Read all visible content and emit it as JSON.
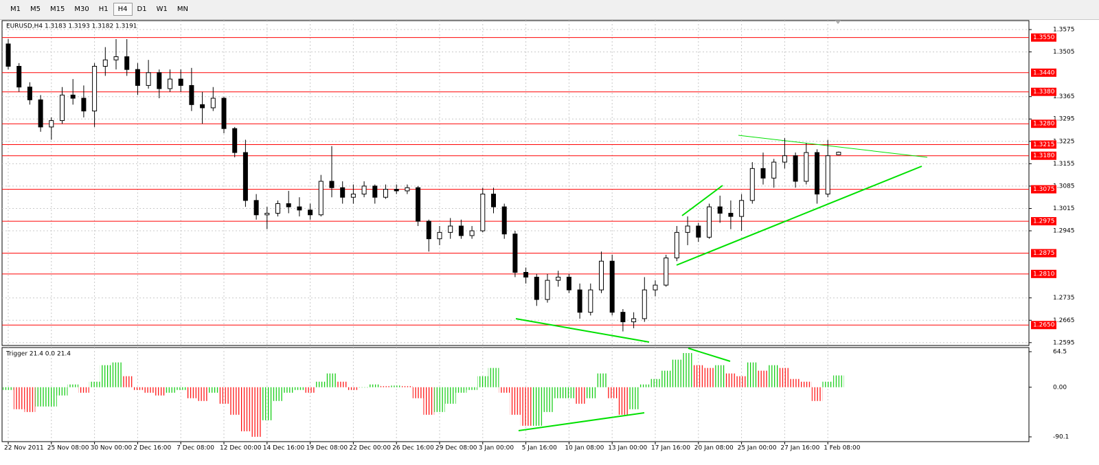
{
  "toolbar": {
    "timeframes": [
      "M1",
      "M5",
      "M15",
      "M30",
      "H1",
      "H4",
      "D1",
      "W1",
      "MN"
    ],
    "active": 5
  },
  "chart_data": [
    {
      "type": "candlestick",
      "title": "EURUSD,H4  1.3183 1.3193 1.3182 1.3191",
      "categories": [
        "22 Nov 2011",
        null,
        null,
        null,
        "25 Nov 08:00",
        null,
        null,
        null,
        "30 Nov 00:00",
        null,
        null,
        null,
        "2 Dec 16:00",
        null,
        null,
        null,
        "7 Dec 08:00",
        null,
        null,
        null,
        "12 Dec 00:00",
        null,
        null,
        null,
        "14 Dec 16:00",
        null,
        null,
        null,
        "19 Dec 08:00",
        null,
        null,
        null,
        "22 Dec 00:00",
        null,
        null,
        null,
        "26 Dec 16:00",
        null,
        null,
        null,
        "29 Dec 08:00",
        null,
        null,
        null,
        "3 Jan 00:00",
        null,
        null,
        null,
        "5 Jan 16:00",
        null,
        null,
        null,
        "10 Jan 08:00",
        null,
        null,
        null,
        "13 Jan 00:00",
        null,
        null,
        null,
        "17 Jan 16:00",
        null,
        null,
        null,
        "20 Jan 08:00",
        null,
        null,
        null,
        "25 Jan 00:00",
        null,
        null,
        null,
        "27 Jan 16:00",
        null,
        null,
        null,
        "1 Feb 08:00",
        null
      ],
      "ohlc": [
        [
          1.353,
          1.3545,
          1.345,
          1.346
        ],
        [
          1.346,
          1.347,
          1.338,
          1.3395
        ],
        [
          1.3395,
          1.341,
          1.334,
          1.3355
        ],
        [
          1.3355,
          1.337,
          1.3255,
          1.327
        ],
        [
          1.327,
          1.33,
          1.323,
          1.329
        ],
        [
          1.329,
          1.3395,
          1.328,
          1.337
        ],
        [
          1.337,
          1.342,
          1.334,
          1.336
        ],
        [
          1.336,
          1.34,
          1.33,
          1.332
        ],
        [
          1.332,
          1.347,
          1.327,
          1.346
        ],
        [
          1.346,
          1.352,
          1.343,
          1.348
        ],
        [
          1.348,
          1.3545,
          1.345,
          1.349
        ],
        [
          1.349,
          1.3545,
          1.343,
          1.345
        ],
        [
          1.345,
          1.347,
          1.337,
          1.34
        ],
        [
          1.34,
          1.348,
          1.339,
          1.344
        ],
        [
          1.344,
          1.345,
          1.336,
          1.339
        ],
        [
          1.339,
          1.345,
          1.338,
          1.342
        ],
        [
          1.342,
          1.345,
          1.338,
          1.34
        ],
        [
          1.34,
          1.3455,
          1.332,
          1.334
        ],
        [
          1.334,
          1.338,
          1.328,
          1.333
        ],
        [
          1.333,
          1.3395,
          1.332,
          1.336
        ],
        [
          1.336,
          1.3365,
          1.325,
          1.3265
        ],
        [
          1.3265,
          1.327,
          1.3175,
          1.319
        ],
        [
          1.319,
          1.323,
          1.302,
          1.304
        ],
        [
          1.304,
          1.306,
          1.298,
          1.2995
        ],
        [
          1.2995,
          1.302,
          1.295,
          1.3
        ],
        [
          1.3,
          1.304,
          1.299,
          1.303
        ],
        [
          1.303,
          1.307,
          1.3,
          1.302
        ],
        [
          1.302,
          1.305,
          1.299,
          1.301
        ],
        [
          1.301,
          1.303,
          1.298,
          1.2995
        ],
        [
          1.2995,
          1.312,
          1.299,
          1.31
        ],
        [
          1.31,
          1.321,
          1.305,
          1.308
        ],
        [
          1.308,
          1.31,
          1.303,
          1.305
        ],
        [
          1.305,
          1.309,
          1.303,
          1.306
        ],
        [
          1.306,
          1.31,
          1.305,
          1.3085
        ],
        [
          1.3085,
          1.309,
          1.303,
          1.305
        ],
        [
          1.305,
          1.309,
          1.3045,
          1.3075
        ],
        [
          1.3075,
          1.309,
          1.306,
          1.307
        ],
        [
          1.307,
          1.309,
          1.306,
          1.308
        ],
        [
          1.308,
          1.3085,
          1.296,
          1.2975
        ],
        [
          1.2975,
          1.298,
          1.288,
          1.292
        ],
        [
          1.292,
          1.296,
          1.29,
          1.294
        ],
        [
          1.294,
          1.2985,
          1.292,
          1.296
        ],
        [
          1.296,
          1.298,
          1.292,
          1.293
        ],
        [
          1.293,
          1.296,
          1.292,
          1.2945
        ],
        [
          1.2945,
          1.308,
          1.294,
          1.306
        ],
        [
          1.306,
          1.308,
          1.3,
          1.302
        ],
        [
          1.302,
          1.303,
          1.292,
          1.2935
        ],
        [
          1.2935,
          1.2945,
          1.28,
          1.2815
        ],
        [
          1.2815,
          1.283,
          1.278,
          1.28
        ],
        [
          1.28,
          1.281,
          1.271,
          1.273
        ],
        [
          1.273,
          1.281,
          1.272,
          1.279
        ],
        [
          1.279,
          1.282,
          1.277,
          1.28
        ],
        [
          1.28,
          1.281,
          1.275,
          1.276
        ],
        [
          1.276,
          1.278,
          1.267,
          1.269
        ],
        [
          1.269,
          1.278,
          1.268,
          1.276
        ],
        [
          1.276,
          1.288,
          1.275,
          1.285
        ],
        [
          1.285,
          1.287,
          1.268,
          1.269
        ],
        [
          1.269,
          1.27,
          1.263,
          1.266
        ],
        [
          1.266,
          1.269,
          1.264,
          1.267
        ],
        [
          1.267,
          1.28,
          1.266,
          1.276
        ],
        [
          1.276,
          1.279,
          1.274,
          1.2775
        ],
        [
          1.2775,
          1.287,
          1.277,
          1.286
        ],
        [
          1.286,
          1.296,
          1.285,
          1.294
        ],
        [
          1.294,
          1.299,
          1.29,
          1.296
        ],
        [
          1.296,
          1.297,
          1.291,
          1.2925
        ],
        [
          1.2925,
          1.303,
          1.292,
          1.302
        ],
        [
          1.302,
          1.3055,
          1.297,
          1.3
        ],
        [
          1.3,
          1.304,
          1.295,
          1.299
        ],
        [
          1.299,
          1.306,
          1.2945,
          1.304
        ],
        [
          1.304,
          1.316,
          1.303,
          1.314
        ],
        [
          1.314,
          1.319,
          1.309,
          1.311
        ],
        [
          1.311,
          1.317,
          1.308,
          1.316
        ],
        [
          1.316,
          1.3235,
          1.314,
          1.318
        ],
        [
          1.318,
          1.319,
          1.308,
          1.31
        ],
        [
          1.31,
          1.322,
          1.309,
          1.319
        ],
        [
          1.319,
          1.32,
          1.303,
          1.306
        ],
        [
          1.306,
          1.323,
          1.305,
          1.318
        ],
        [
          1.3183,
          1.3193,
          1.3182,
          1.3191
        ]
      ],
      "bull_color": "#ffffff",
      "bear_color": "#000000",
      "wick_color": "#000000",
      "ylim": [
        1.2586,
        1.3603
      ],
      "yticks": [
        1.3575,
        1.3505,
        1.3365,
        1.3295,
        1.3225,
        1.3155,
        1.3085,
        1.3015,
        1.2945,
        1.2735,
        1.2665,
        1.2595
      ],
      "levels": [
        {
          "value": 1.355,
          "label": "1.3550"
        },
        {
          "value": 1.344,
          "label": "1.3440"
        },
        {
          "value": 1.338,
          "label": "1.3380"
        },
        {
          "value": 1.328,
          "label": "1.3280"
        },
        1.3215,
        {
          "value": 1.318,
          "label": "1.3180"
        },
        1.3075,
        1.2975,
        1.2875,
        {
          "value": 1.281,
          "label": "1.2810"
        },
        {
          "value": 1.265,
          "label": "1.2650"
        }
      ],
      "level_color": "#ff0000",
      "grid": true
    },
    {
      "type": "histogram",
      "title": "Trigger 21.4 0.0 21.4",
      "values": [
        -5,
        -40,
        -45,
        -35,
        -35,
        -15,
        5,
        -10,
        10,
        40,
        45,
        20,
        -5,
        -10,
        -15,
        -10,
        -5,
        -20,
        -25,
        -10,
        -30,
        -50,
        -80,
        -90,
        -60,
        -25,
        -10,
        -5,
        -10,
        10,
        25,
        10,
        -5,
        0,
        5,
        2,
        3,
        2,
        -20,
        -50,
        -45,
        -30,
        -10,
        -5,
        20,
        35,
        -10,
        -50,
        -70,
        -70,
        -45,
        -20,
        -20,
        -30,
        -20,
        25,
        -20,
        -50,
        -40,
        5,
        15,
        30,
        50,
        62,
        40,
        35,
        40,
        25,
        20,
        45,
        30,
        40,
        35,
        15,
        10,
        -25,
        10,
        21.4
      ],
      "up_color": "#00c800",
      "down_color": "#ff0000",
      "ylim": [
        -98.8,
        72
      ],
      "yticks": [
        64.5,
        {
          "value": 0,
          "label": "0.00"
        },
        -90.1
      ],
      "grid": true
    }
  ]
}
